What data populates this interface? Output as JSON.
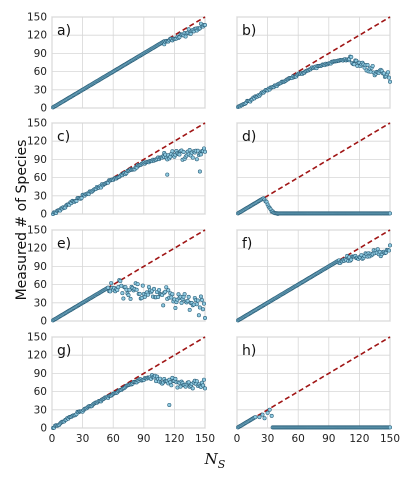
{
  "figure": {
    "ylabel": "Measured # of Species",
    "xlabel_main": "N",
    "xlabel_sub": "S"
  },
  "colors": {
    "points": "#8ec9e0",
    "point_edge": "#2b5f79",
    "identity_line": "#a01515",
    "grid": "#d7d7d7",
    "frame": "#bdbdbd"
  },
  "chart_data": [
    {
      "panel": "a)",
      "type": "scatter",
      "xlim": [
        0,
        150
      ],
      "ylim": [
        0,
        150
      ],
      "xticks": [
        0,
        30,
        60,
        90,
        120,
        150
      ],
      "yticks": [
        0,
        30,
        60,
        90,
        120,
        150
      ],
      "reference_line": "y = x (dashed)",
      "series": [
        {
          "segments": [
            {
              "kind": "identity",
              "from": 1,
              "to": 110
            },
            {
              "kind": "scatter",
              "from": 110,
              "to": 150,
              "start": 107,
              "end": 136,
              "spread": 4
            }
          ]
        }
      ]
    },
    {
      "panel": "b)",
      "type": "scatter",
      "xlim": [
        0,
        150
      ],
      "ylim": [
        0,
        150
      ],
      "xticks": [
        0,
        30,
        60,
        90,
        120,
        150
      ],
      "yticks": [
        0,
        30,
        60,
        90,
        120,
        150
      ],
      "reference_line": "y = x (dashed)",
      "series": [
        {
          "segments": [
            {
              "kind": "curve",
              "from": 1,
              "to": 110,
              "knots": [
                [
                  1,
                  1
                ],
                [
                  20,
                  20
                ],
                [
                  40,
                  39
                ],
                [
                  60,
                  55
                ],
                [
                  75,
                  66
                ],
                [
                  90,
                  74
                ],
                [
                  100,
                  78
                ],
                [
                  110,
                  80
                ]
              ],
              "spread": 1.5
            },
            {
              "kind": "scatter",
              "from": 110,
              "to": 150,
              "start": 80,
              "end": 50,
              "spread": 7
            }
          ]
        }
      ]
    },
    {
      "panel": "c)",
      "type": "scatter",
      "xlim": [
        0,
        150
      ],
      "ylim": [
        0,
        150
      ],
      "xticks": [
        0,
        30,
        60,
        90,
        120,
        150
      ],
      "yticks": [
        0,
        30,
        60,
        90,
        120,
        150
      ],
      "reference_line": "y = x (dashed)",
      "series": [
        {
          "segments": [
            {
              "kind": "curve",
              "from": 1,
              "to": 110,
              "knots": [
                [
                  1,
                  1
                ],
                [
                  40,
                  39
                ],
                [
                  60,
                  57
                ],
                [
                  75,
                  70
                ],
                [
                  90,
                  84
                ],
                [
                  110,
                  94
                ]
              ],
              "spread": 2
            },
            {
              "kind": "scatter",
              "from": 110,
              "to": 150,
              "start": 95,
              "end": 102,
              "spread": 9
            },
            {
              "kind": "points",
              "pts": [
                [
                  113,
                  65
                ],
                [
                  145,
                  70
                ]
              ]
            }
          ]
        }
      ]
    },
    {
      "panel": "d)",
      "type": "scatter",
      "xlim": [
        0,
        150
      ],
      "ylim": [
        0,
        150
      ],
      "xticks": [
        0,
        30,
        60,
        90,
        120,
        150
      ],
      "yticks": [
        0,
        30,
        60,
        90,
        120,
        150
      ],
      "reference_line": "y = x (dashed)",
      "series": [
        {
          "segments": [
            {
              "kind": "identity",
              "from": 1,
              "to": 25
            },
            {
              "kind": "curve",
              "from": 26,
              "to": 40,
              "knots": [
                [
                  26,
                  25
                ],
                [
                  28,
                  22
                ],
                [
                  31,
                  12
                ],
                [
                  34,
                  5
                ],
                [
                  37,
                  2
                ],
                [
                  40,
                  1
                ]
              ],
              "spread": 1
            },
            {
              "kind": "flat",
              "from": 40,
              "to": 150,
              "value": 1
            }
          ]
        }
      ]
    },
    {
      "panel": "e)",
      "type": "scatter",
      "xlim": [
        0,
        150
      ],
      "ylim": [
        0,
        150
      ],
      "xticks": [
        0,
        30,
        60,
        90,
        120,
        150
      ],
      "yticks": [
        0,
        30,
        60,
        90,
        120,
        150
      ],
      "reference_line": "y = x (dashed)",
      "series": [
        {
          "segments": [
            {
              "kind": "identity",
              "from": 1,
              "to": 55
            },
            {
              "kind": "scatter",
              "from": 56,
              "to": 150,
              "start": 58,
              "end": 25,
              "spread": 16
            }
          ]
        }
      ]
    },
    {
      "panel": "f)",
      "type": "scatter",
      "xlim": [
        0,
        150
      ],
      "ylim": [
        0,
        150
      ],
      "xticks": [
        0,
        30,
        60,
        90,
        120,
        150
      ],
      "yticks": [
        0,
        30,
        60,
        90,
        120,
        150
      ],
      "reference_line": "y = x (dashed)",
      "series": [
        {
          "segments": [
            {
              "kind": "identity",
              "from": 1,
              "to": 100
            },
            {
              "kind": "scatter",
              "from": 100,
              "to": 150,
              "start": 97,
              "end": 118,
              "spread": 6
            }
          ]
        }
      ]
    },
    {
      "panel": "g)",
      "type": "scatter",
      "xlim": [
        0,
        150
      ],
      "ylim": [
        0,
        150
      ],
      "xticks": [
        0,
        30,
        60,
        90,
        120,
        150
      ],
      "yticks": [
        0,
        30,
        60,
        90,
        120,
        150
      ],
      "reference_line": "y = x (dashed)",
      "series": [
        {
          "segments": [
            {
              "kind": "curve",
              "from": 1,
              "to": 95,
              "knots": [
                [
                  1,
                  1
                ],
                [
                  40,
                  39
                ],
                [
                  60,
                  56
                ],
                [
                  75,
                  70
                ],
                [
                  85,
                  78
                ],
                [
                  95,
                  82
                ]
              ],
              "spread": 2
            },
            {
              "kind": "scatter",
              "from": 95,
              "to": 150,
              "start": 82,
              "end": 70,
              "spread": 8
            },
            {
              "kind": "points",
              "pts": [
                [
                  115,
                  38
                ]
              ]
            }
          ]
        }
      ]
    },
    {
      "panel": "h)",
      "type": "scatter",
      "xlim": [
        0,
        150
      ],
      "ylim": [
        0,
        150
      ],
      "xticks": [
        0,
        30,
        60,
        90,
        120,
        150
      ],
      "yticks": [
        0,
        30,
        60,
        90,
        120,
        150
      ],
      "reference_line": "y = x (dashed)",
      "series": [
        {
          "segments": [
            {
              "kind": "identity",
              "from": 1,
              "to": 18
            },
            {
              "kind": "points",
              "pts": [
                [
                  22,
                  18
                ],
                [
                  25,
                  22
                ],
                [
                  27,
                  16
                ],
                [
                  30,
                  25
                ],
                [
                  32,
                  30
                ],
                [
                  34,
                  20
                ]
              ]
            },
            {
              "kind": "flat",
              "from": 35,
              "to": 150,
              "value": 1
            }
          ]
        }
      ]
    }
  ]
}
